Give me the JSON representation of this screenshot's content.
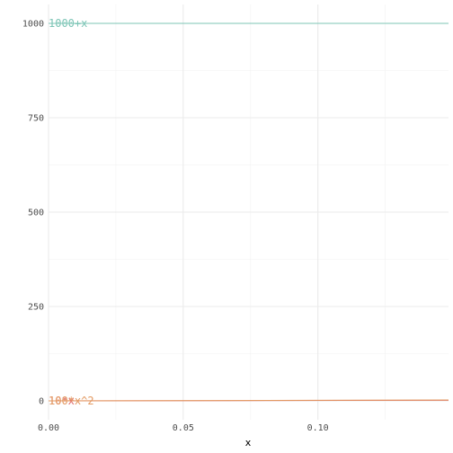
{
  "chart_data": {
    "type": "line",
    "xlabel": "x",
    "ylabel": "",
    "xlim": [
      0,
      0.1485
    ],
    "ylim": [
      -50,
      1050
    ],
    "x_ticks": [
      0,
      0.05,
      0.1
    ],
    "x_tick_labels": [
      "0.00",
      "0.05",
      "0.10"
    ],
    "y_ticks": [
      0,
      250,
      500,
      750,
      1000
    ],
    "y_tick_labels": [
      "0",
      "250",
      "500",
      "750",
      "1000"
    ],
    "grid": true,
    "legend": "none",
    "series": [
      {
        "name": "1000+x",
        "color": "#7dc5b6",
        "x": [
          0,
          0.15
        ],
        "y": [
          1000,
          1000.15
        ]
      },
      {
        "name": "10*x",
        "color": "#e06c6c",
        "x": [
          0,
          0.15
        ],
        "y": [
          0,
          1.5
        ]
      },
      {
        "name": "100*x^2",
        "color": "#e39a62",
        "x": [
          0,
          0.15
        ],
        "y": [
          0,
          2.25
        ]
      }
    ]
  }
}
